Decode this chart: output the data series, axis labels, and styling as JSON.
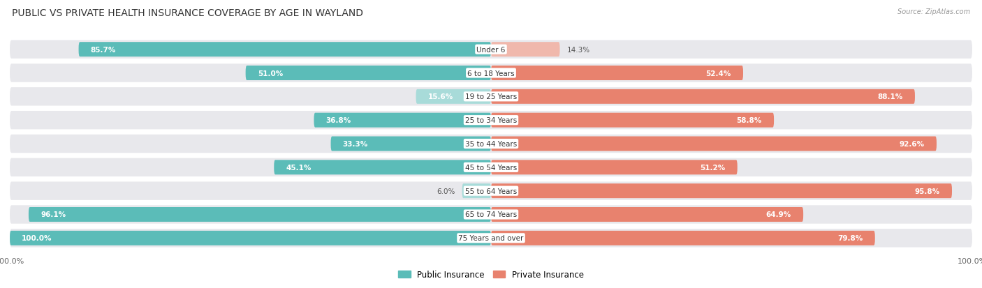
{
  "title": "PUBLIC VS PRIVATE HEALTH INSURANCE COVERAGE BY AGE IN WAYLAND",
  "source": "Source: ZipAtlas.com",
  "categories": [
    "Under 6",
    "6 to 18 Years",
    "19 to 25 Years",
    "25 to 34 Years",
    "35 to 44 Years",
    "45 to 54 Years",
    "55 to 64 Years",
    "65 to 74 Years",
    "75 Years and over"
  ],
  "public_values": [
    85.7,
    51.0,
    15.6,
    36.8,
    33.3,
    45.1,
    6.0,
    96.1,
    100.0
  ],
  "private_values": [
    14.3,
    52.4,
    88.1,
    58.8,
    92.6,
    51.2,
    95.8,
    64.9,
    79.8
  ],
  "public_color": "#5bbcb8",
  "public_color_light": "#a8dbd9",
  "private_color": "#e8826e",
  "private_color_light": "#f0b8ac",
  "background_color": "#ffffff",
  "row_bg_color": "#e8e8ec",
  "title_fontsize": 10,
  "label_fontsize": 7.5,
  "value_fontsize": 7.5,
  "legend_public": "Public Insurance",
  "legend_private": "Private Insurance",
  "max_value": 100.0,
  "axis_label_left": "100.0%",
  "axis_label_right": "100.0%"
}
